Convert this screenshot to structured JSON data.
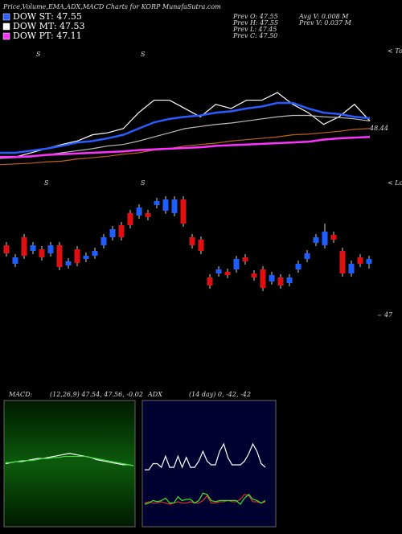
{
  "header": {
    "title": "Price,Volume,EMA,ADX,MACD Charts for KORP MunafaSutra.com",
    "legend": [
      {
        "label": "DOW ST: 47.55",
        "color": "#2a5cff"
      },
      {
        "label": "DOW MT: 47.53",
        "color": "#ffffff"
      },
      {
        "label": "DOW PT: 47.11",
        "color": "#ff33ff"
      }
    ],
    "stats_left": [
      "Prev  O: 47.55",
      "Prev  H: 47.55",
      "Prev  L: 47.45",
      "Prev  C: 47.50"
    ],
    "stats_right": [
      "Avg V: 0.008 M",
      "Prev  V: 0.037 M"
    ]
  },
  "chart_data": [
    {
      "type": "line",
      "ylim": [
        47.8,
        49.6
      ],
      "last_label": 48.44,
      "edge_label": "< Tops",
      "markers": [
        "S",
        "S"
      ],
      "series": [
        {
          "color": "#ffffff",
          "values": [
            48.03,
            48.03,
            48.09,
            48.15,
            48.21,
            48.26,
            48.35,
            48.38,
            48.44,
            48.67,
            48.85,
            48.85,
            48.73,
            48.61,
            48.79,
            48.73,
            48.85,
            48.85,
            48.96,
            48.79,
            48.67,
            48.5,
            48.61,
            48.79,
            48.55
          ]
        },
        {
          "color": "#2a5cff",
          "values": [
            48.09,
            48.09,
            48.12,
            48.15,
            48.19,
            48.24,
            48.26,
            48.3,
            48.35,
            48.44,
            48.53,
            48.58,
            48.61,
            48.63,
            48.67,
            48.69,
            48.73,
            48.76,
            48.81,
            48.81,
            48.73,
            48.67,
            48.65,
            48.61,
            48.59
          ]
        },
        {
          "color": "#bbbbbb",
          "values": [
            48.01,
            48.02,
            48.03,
            48.06,
            48.09,
            48.12,
            48.15,
            48.19,
            48.21,
            48.26,
            48.32,
            48.38,
            48.44,
            48.47,
            48.5,
            48.52,
            48.55,
            48.58,
            48.61,
            48.63,
            48.63,
            48.61,
            48.6,
            48.58,
            48.55
          ]
        },
        {
          "color": "#c06020",
          "values": [
            47.92,
            47.93,
            47.94,
            47.96,
            47.97,
            48.0,
            48.02,
            48.04,
            48.07,
            48.09,
            48.13,
            48.15,
            48.19,
            48.21,
            48.23,
            48.26,
            48.28,
            48.3,
            48.32,
            48.35,
            48.36,
            48.38,
            48.4,
            48.43,
            48.44
          ]
        },
        {
          "color": "#ff33ff",
          "values": [
            48.03,
            48.03,
            48.04,
            48.06,
            48.07,
            48.08,
            48.09,
            48.1,
            48.11,
            48.13,
            48.14,
            48.15,
            48.16,
            48.17,
            48.19,
            48.2,
            48.21,
            48.22,
            48.23,
            48.24,
            48.25,
            48.28,
            48.3,
            48.31,
            48.32
          ]
        }
      ]
    },
    {
      "type": "candlestick",
      "ylim": [
        46.96,
        47.81
      ],
      "yticks": [
        47
      ],
      "edge_label": "< Lows",
      "markers": [
        "S",
        "S"
      ],
      "up_color": "#1e5eff",
      "down_color": "#e01010",
      "open": [
        47.435,
        47.32,
        47.485,
        47.4,
        47.41,
        47.385,
        47.435,
        47.31,
        47.41,
        47.35,
        47.37,
        47.435,
        47.485,
        47.56,
        47.635,
        47.62,
        47.635,
        47.685,
        47.65,
        47.635,
        47.72,
        47.485,
        47.47,
        47.235,
        47.26,
        47.27,
        47.285,
        47.36,
        47.26,
        47.285,
        47.21,
        47.235,
        47.2,
        47.285,
        47.35,
        47.45,
        47.435,
        47.5,
        47.4,
        47.26,
        47.36,
        47.32
      ],
      "high": [
        47.455,
        47.38,
        47.505,
        47.455,
        47.43,
        47.455,
        47.455,
        47.355,
        47.43,
        47.39,
        47.42,
        47.505,
        47.555,
        47.58,
        47.655,
        47.69,
        47.655,
        47.73,
        47.74,
        47.74,
        47.74,
        47.505,
        47.49,
        47.255,
        47.305,
        47.29,
        47.37,
        47.38,
        47.28,
        47.305,
        47.27,
        47.255,
        47.255,
        47.34,
        47.405,
        47.505,
        47.57,
        47.52,
        47.42,
        47.34,
        47.38,
        47.37
      ],
      "low": [
        47.365,
        47.3,
        47.35,
        47.38,
        47.34,
        47.365,
        47.28,
        47.29,
        47.305,
        47.33,
        47.35,
        47.415,
        47.465,
        47.465,
        47.54,
        47.6,
        47.59,
        47.665,
        47.63,
        47.615,
        47.55,
        47.415,
        47.38,
        47.165,
        47.24,
        47.23,
        47.265,
        47.315,
        47.215,
        47.15,
        47.19,
        47.165,
        47.18,
        47.265,
        47.33,
        47.43,
        47.415,
        47.45,
        47.24,
        47.24,
        47.3,
        47.29
      ],
      "close": [
        47.385,
        47.36,
        47.37,
        47.435,
        47.36,
        47.435,
        47.3,
        47.335,
        47.325,
        47.37,
        47.4,
        47.485,
        47.535,
        47.485,
        47.56,
        47.67,
        47.61,
        47.71,
        47.72,
        47.72,
        47.57,
        47.435,
        47.4,
        47.185,
        47.285,
        47.25,
        47.35,
        47.335,
        47.235,
        47.17,
        47.25,
        47.185,
        47.235,
        47.32,
        47.385,
        47.485,
        47.52,
        47.47,
        47.26,
        47.32,
        47.32,
        47.35
      ]
    },
    {
      "type": "macd",
      "title": "MACD:",
      "subtitle": "(12,26,9) 47.54, 47.56, -0.02",
      "ylim": [
        -0.6,
        0.6
      ],
      "series": [
        {
          "color": "#ffffff",
          "values": [
            0,
            0.01,
            0.02,
            0.02,
            0.03,
            0.04,
            0.05,
            0.05,
            0.06,
            0.07,
            0.08,
            0.09,
            0.1,
            0.09,
            0.08,
            0.07,
            0.06,
            0.04,
            0.03,
            0.02,
            0.01,
            0,
            -0.01,
            -0.01,
            -0.02
          ]
        },
        {
          "color": "#44dd44",
          "values": [
            0.01,
            0.01,
            0.02,
            0.03,
            0.03,
            0.03,
            0.04,
            0.05,
            0.05,
            0.06,
            0.06,
            0.07,
            0.07,
            0.07,
            0.07,
            0.07,
            0.06,
            0.05,
            0.04,
            0.03,
            0.02,
            0.01,
            0,
            -0.01,
            -0.02
          ]
        }
      ]
    },
    {
      "type": "adx",
      "title": "ADX",
      "subtitle": "(14 day) 0, -42, -42",
      "ylim": [
        0,
        100
      ],
      "series": [
        {
          "color": "#ffffff",
          "values": [
            45,
            45,
            50,
            50,
            47,
            56,
            47,
            47,
            56,
            47,
            55,
            47,
            47,
            52,
            60,
            52,
            49,
            49,
            60,
            66,
            55,
            49,
            49,
            49,
            52,
            58,
            66,
            60,
            50,
            47
          ]
        },
        {
          "color": "#dd3322",
          "values": [
            18,
            19,
            18,
            18,
            19,
            18,
            17,
            18,
            19,
            18,
            18,
            19,
            18,
            18,
            20,
            24,
            18,
            18,
            19,
            19,
            20,
            19,
            19,
            21,
            25,
            24,
            19,
            19,
            18,
            19
          ]
        },
        {
          "color": "#33ee33",
          "values": [
            17,
            18,
            20,
            19,
            20,
            22,
            18,
            18,
            23,
            20,
            21,
            21,
            18,
            20,
            26,
            25,
            20,
            19,
            20,
            20,
            20,
            20,
            20,
            17,
            22,
            25,
            21,
            20,
            18,
            20
          ]
        }
      ]
    }
  ]
}
